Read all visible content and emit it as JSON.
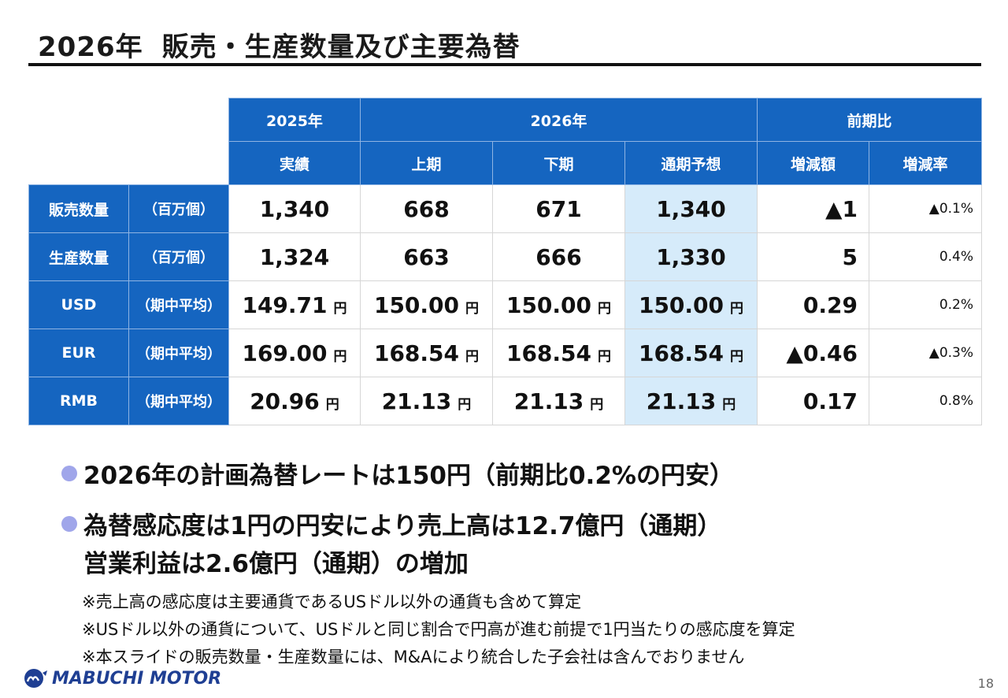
{
  "title": {
    "year": "2026年",
    "main": "販売・生産数量及び主要為替"
  },
  "header": {
    "col_2025": "2025年",
    "col_2026": "2026年",
    "col_yoy": "前期比",
    "actual": "実績",
    "first_half": "上期",
    "second_half": "下期",
    "full_forecast": "通期予想",
    "change_amount": "増減額",
    "change_rate": "増減率"
  },
  "rows": [
    {
      "label": "販売数量",
      "unit": "（百万個）",
      "actual": "1,340",
      "h1": "668",
      "h2": "671",
      "fy": "1,340",
      "yen": "",
      "diff": "▲1",
      "rate": "▲0.1%"
    },
    {
      "label": "生産数量",
      "unit": "（百万個）",
      "actual": "1,324",
      "h1": "663",
      "h2": "666",
      "fy": "1,330",
      "yen": "",
      "diff": "5",
      "rate": "0.4%"
    },
    {
      "label": "USD",
      "unit": "（期中平均）",
      "actual": "149.71",
      "h1": "150.00",
      "h2": "150.00",
      "fy": "150.00",
      "yen": "円",
      "diff": "0.29",
      "rate": "0.2%"
    },
    {
      "label": "EUR",
      "unit": "（期中平均）",
      "actual": "169.00",
      "h1": "168.54",
      "h2": "168.54",
      "fy": "168.54",
      "yen": "円",
      "diff": "▲0.46",
      "rate": "▲0.3%"
    },
    {
      "label": "RMB",
      "unit": "（期中平均）",
      "actual": "20.96",
      "h1": "21.13",
      "h2": "21.13",
      "fy": "21.13",
      "yen": "円",
      "diff": "0.17",
      "rate": "0.8%"
    }
  ],
  "bullets": [
    "2026年の計画為替レートは150円（前期比0.2%の円安）",
    "為替感応度は1円の円安により売上高は12.7億円（通期）",
    "営業利益は2.6億円（通期）の増加"
  ],
  "notes": [
    "※売上高の感応度は主要通貨であるUSドル以外の通貨も含めて算定",
    "※USドル以外の通貨について、USドルと同じ割合で円高が進む前提で1円当たりの感応度を算定",
    "※本スライドの販売数量・生産数量には、M&Aにより統合した子会社は含んでおりません"
  ],
  "footer": {
    "logo": "MABUCHI MOTOR",
    "page": "18"
  },
  "colors": {
    "header_blue": "#1565c0",
    "highlight": "#d6ebfa",
    "bullet": "#a0a6ea",
    "logo": "#1f3f93"
  }
}
